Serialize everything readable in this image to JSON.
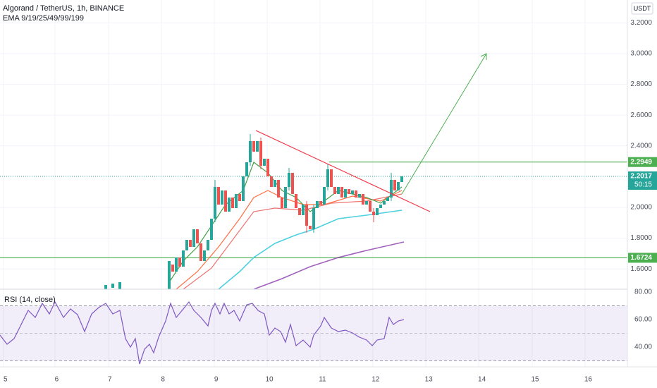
{
  "header": {
    "title": "Algorand / TetherUS, 1h, BINANCE",
    "indicator": "EMA 9/19/25/49/99/199"
  },
  "price_axis": {
    "currency": "USDT",
    "ticks": [
      {
        "value": 3.2,
        "label": "3.2000"
      },
      {
        "value": 3.0,
        "label": "3.0000"
      },
      {
        "value": 2.8,
        "label": "2.8000"
      },
      {
        "value": 2.6,
        "label": "2.6000"
      },
      {
        "value": 2.4,
        "label": "2.4000"
      },
      {
        "value": 2.0,
        "label": "2.0000"
      },
      {
        "value": 1.8,
        "label": "1.8000"
      },
      {
        "value": 1.6,
        "label": "1.6000"
      }
    ],
    "labels": [
      {
        "value": 2.2949,
        "label": "2.2949"
      },
      {
        "value": 2.2017,
        "label": "2.2017",
        "countdown": "50:15"
      },
      {
        "value": 1.6724,
        "label": "1.6724"
      }
    ]
  },
  "rsi": {
    "title": "RSI (14, close)",
    "ticks": [
      {
        "value": 80,
        "label": "80.00"
      },
      {
        "value": 60,
        "label": "60.00"
      },
      {
        "value": 40,
        "label": "40.00"
      }
    ]
  },
  "time_axis": [
    "5",
    "6",
    "7",
    "8",
    "9",
    "10",
    "11",
    "12",
    "13",
    "14",
    "15",
    "16"
  ]
}
